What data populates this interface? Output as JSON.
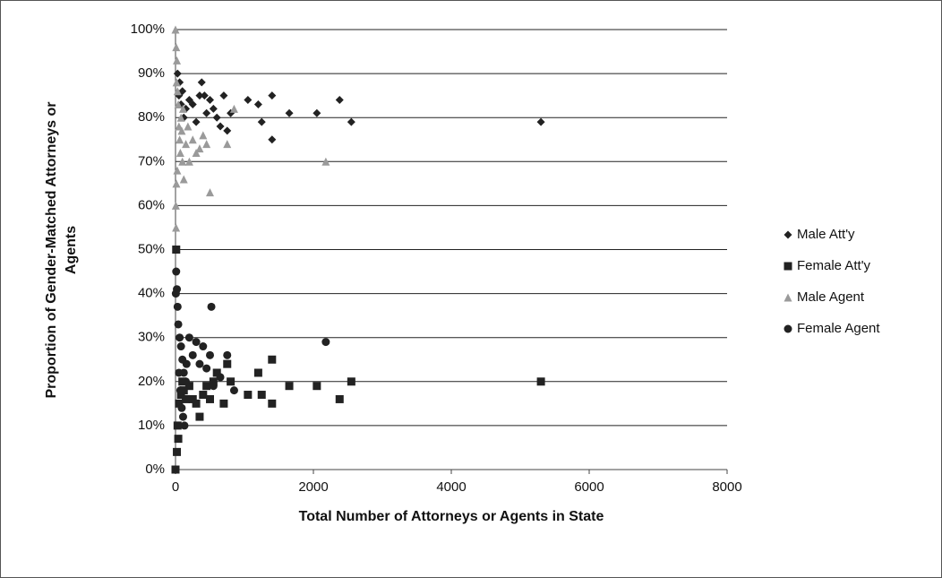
{
  "chart_data": {
    "type": "scatter",
    "xlabel": "Total Number of Attorneys or Agents in State",
    "ylabel": [
      "Proportion of Gender-Matched Attorneys or",
      "Agents"
    ],
    "xlim": [
      0,
      8000
    ],
    "xticks": [
      0,
      2000,
      4000,
      6000,
      8000
    ],
    "ylim": [
      0,
      100
    ],
    "yticks": [
      {
        "value": 0,
        "label": "0%"
      },
      {
        "value": 10,
        "label": "10%"
      },
      {
        "value": 20,
        "label": "20%"
      },
      {
        "value": 30,
        "label": "30%"
      },
      {
        "value": 40,
        "label": "40%"
      },
      {
        "value": 50,
        "label": "50%"
      },
      {
        "value": 60,
        "label": "60%"
      },
      {
        "value": 70,
        "label": "70%"
      },
      {
        "value": 80,
        "label": "80%"
      },
      {
        "value": 90,
        "label": "90%"
      },
      {
        "value": 100,
        "label": "100%"
      }
    ],
    "grid": true,
    "legend": "right",
    "series": [
      {
        "name": "Male Att'y",
        "color": "#222222",
        "marker": "diamond",
        "x": [
          50,
          80,
          100,
          120,
          150,
          200,
          250,
          300,
          350,
          380,
          420,
          450,
          500,
          550,
          600,
          650,
          700,
          750,
          800,
          1050,
          1200,
          1250,
          1400,
          1400,
          1650,
          2050,
          2380,
          2550,
          5300,
          30,
          60
        ],
        "values": [
          85,
          83,
          86,
          80,
          82,
          84,
          83,
          79,
          85,
          88,
          85,
          81,
          84,
          82,
          80,
          78,
          85,
          77,
          81,
          84,
          83,
          79,
          85,
          75,
          81,
          81,
          84,
          79,
          79,
          90,
          88
        ]
      },
      {
        "name": "Female Att'y",
        "color": "#222222",
        "marker": "square",
        "x": [
          50,
          80,
          100,
          120,
          150,
          200,
          250,
          300,
          350,
          400,
          450,
          500,
          550,
          600,
          700,
          750,
          800,
          1050,
          1200,
          1250,
          1400,
          1400,
          1650,
          2050,
          2380,
          2550,
          5300,
          30,
          40,
          20,
          10,
          0
        ],
        "values": [
          15,
          17,
          20,
          18,
          16,
          19,
          16,
          15,
          12,
          17,
          19,
          16,
          20,
          22,
          15,
          24,
          20,
          17,
          22,
          17,
          15,
          25,
          19,
          19,
          16,
          20,
          20,
          10,
          7,
          4,
          50,
          0
        ]
      },
      {
        "name": "Male Agent",
        "color": "#9a9a9a",
        "marker": "triangle",
        "x": [
          0,
          10,
          20,
          15,
          30,
          40,
          50,
          60,
          70,
          80,
          90,
          100,
          120,
          150,
          180,
          200,
          250,
          300,
          350,
          400,
          450,
          500,
          750,
          850,
          2180,
          5,
          8,
          12,
          25,
          110
        ],
        "values": [
          100,
          96,
          93,
          88,
          86,
          83,
          78,
          75,
          72,
          80,
          77,
          70,
          66,
          74,
          78,
          70,
          75,
          72,
          73,
          76,
          74,
          63,
          74,
          82,
          70,
          60,
          55,
          65,
          68,
          82
        ]
      },
      {
        "name": "Female Agent",
        "color": "#222222",
        "marker": "circle",
        "x": [
          0,
          10,
          20,
          30,
          40,
          60,
          80,
          100,
          120,
          150,
          200,
          250,
          300,
          350,
          400,
          450,
          500,
          520,
          550,
          650,
          750,
          850,
          2180,
          5,
          50,
          70,
          90,
          110,
          130,
          160
        ],
        "values": [
          0,
          45,
          41,
          37,
          33,
          30,
          28,
          25,
          22,
          20,
          30,
          26,
          29,
          24,
          28,
          23,
          26,
          37,
          19,
          21,
          26,
          18,
          29,
          40,
          22,
          18,
          14,
          12,
          10,
          24
        ]
      }
    ]
  }
}
